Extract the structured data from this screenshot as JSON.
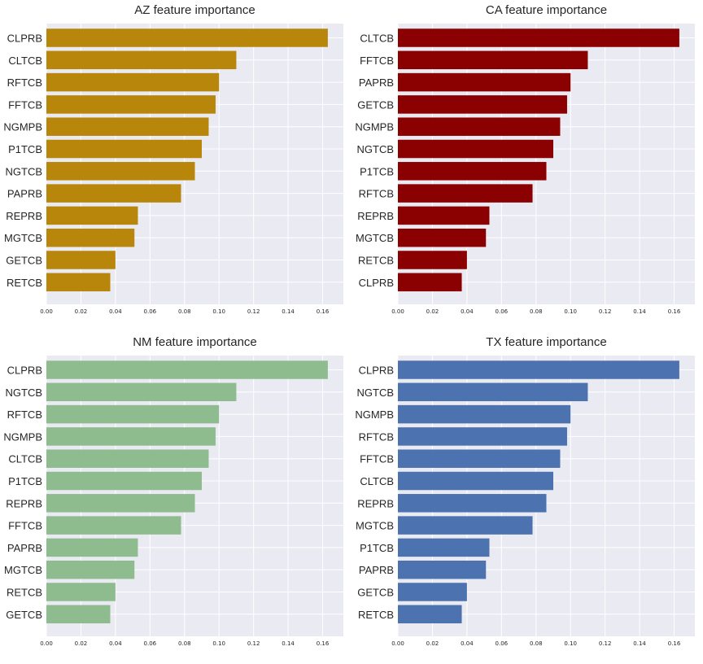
{
  "chart_data": [
    {
      "type": "bar",
      "orientation": "horizontal",
      "title": "AZ feature importance",
      "color": "#B8860B",
      "categories": [
        "CLPRB",
        "CLTCB",
        "RFTCB",
        "FFTCB",
        "NGMPB",
        "P1TCB",
        "NGTCB",
        "PAPRB",
        "REPRB",
        "MGTCB",
        "GETCB",
        "RETCB"
      ],
      "values": [
        0.163,
        0.11,
        0.1,
        0.098,
        0.094,
        0.09,
        0.086,
        0.078,
        0.053,
        0.051,
        0.04,
        0.037
      ],
      "xlim": [
        0,
        0.172
      ],
      "xticks": [
        "0.00",
        "0.02",
        "0.04",
        "0.06",
        "0.08",
        "0.10",
        "0.12",
        "0.14",
        "0.16"
      ],
      "grid": true
    },
    {
      "type": "bar",
      "orientation": "horizontal",
      "title": "CA feature importance",
      "color": "#8B0000",
      "categories": [
        "CLTCB",
        "FFTCB",
        "PAPRB",
        "GETCB",
        "NGMPB",
        "NGTCB",
        "P1TCB",
        "RFTCB",
        "REPRB",
        "MGTCB",
        "RETCB",
        "CLPRB"
      ],
      "values": [
        0.163,
        0.11,
        0.1,
        0.098,
        0.094,
        0.09,
        0.086,
        0.078,
        0.053,
        0.051,
        0.04,
        0.037
      ],
      "xlim": [
        0,
        0.172
      ],
      "xticks": [
        "0.00",
        "0.02",
        "0.04",
        "0.06",
        "0.08",
        "0.10",
        "0.12",
        "0.14",
        "0.16"
      ],
      "grid": true
    },
    {
      "type": "bar",
      "orientation": "horizontal",
      "title": "NM feature importance",
      "color": "#8FBC8F",
      "categories": [
        "CLPRB",
        "NGTCB",
        "RFTCB",
        "NGMPB",
        "CLTCB",
        "P1TCB",
        "REPRB",
        "FFTCB",
        "PAPRB",
        "MGTCB",
        "RETCB",
        "GETCB"
      ],
      "values": [
        0.163,
        0.11,
        0.1,
        0.098,
        0.094,
        0.09,
        0.086,
        0.078,
        0.053,
        0.051,
        0.04,
        0.037
      ],
      "xlim": [
        0,
        0.172
      ],
      "xticks": [
        "0.00",
        "0.02",
        "0.04",
        "0.06",
        "0.08",
        "0.10",
        "0.12",
        "0.14",
        "0.16"
      ],
      "grid": true
    },
    {
      "type": "bar",
      "orientation": "horizontal",
      "title": "TX feature importance",
      "color": "#4C72B0",
      "categories": [
        "CLPRB",
        "NGTCB",
        "NGMPB",
        "RFTCB",
        "FFTCB",
        "CLTCB",
        "REPRB",
        "MGTCB",
        "P1TCB",
        "PAPRB",
        "GETCB",
        "RETCB"
      ],
      "values": [
        0.163,
        0.11,
        0.1,
        0.098,
        0.094,
        0.09,
        0.086,
        0.078,
        0.053,
        0.051,
        0.04,
        0.037
      ],
      "xlim": [
        0,
        0.172
      ],
      "xticks": [
        "0.00",
        "0.02",
        "0.04",
        "0.06",
        "0.08",
        "0.10",
        "0.12",
        "0.14",
        "0.16"
      ],
      "grid": true
    }
  ]
}
